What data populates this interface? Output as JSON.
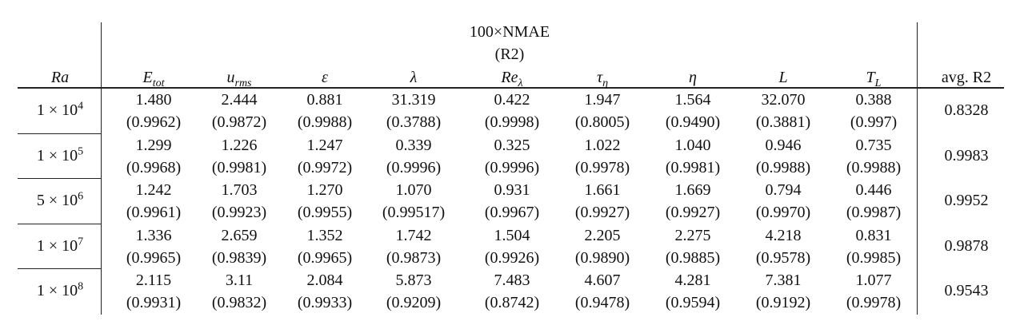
{
  "header": {
    "group_title": "100×NMAE",
    "group_subtitle": "(R2)",
    "row_label": "Ra",
    "columns": [
      {
        "base": "E",
        "sub": "tot"
      },
      {
        "base": "u",
        "sub": "rms"
      },
      {
        "base": "ε"
      },
      {
        "base": "λ"
      },
      {
        "base": "Re",
        "sub": "λ"
      },
      {
        "base": "τ",
        "sub": "η"
      },
      {
        "base": "η"
      },
      {
        "base": "L"
      },
      {
        "base": "T",
        "sub": "L"
      }
    ],
    "avg_label": "avg. R2"
  },
  "rows": [
    {
      "ra": {
        "base": "1 × 10",
        "sup": "4"
      },
      "cells": [
        {
          "value": "1.480",
          "r2": "(0.9962)"
        },
        {
          "value": "2.444",
          "r2": "(0.9872)"
        },
        {
          "value": "0.881",
          "r2": "(0.9988)"
        },
        {
          "value": "31.319",
          "r2": "(0.3788)"
        },
        {
          "value": "0.422",
          "r2": "(0.9998)"
        },
        {
          "value": "1.947",
          "r2": "(0.8005)"
        },
        {
          "value": "1.564",
          "r2": "(0.9490)"
        },
        {
          "value": "32.070",
          "r2": "(0.3881)"
        },
        {
          "value": "0.388",
          "r2": "(0.997)"
        }
      ],
      "avg": "0.8328"
    },
    {
      "ra": {
        "base": "1 × 10",
        "sup": "5"
      },
      "cells": [
        {
          "value": "1.299",
          "r2": "(0.9968)"
        },
        {
          "value": "1.226",
          "r2": "(0.9981)"
        },
        {
          "value": "1.247",
          "r2": "(0.9972)"
        },
        {
          "value": "0.339",
          "r2": "(0.9996)"
        },
        {
          "value": "0.325",
          "r2": "(0.9996)"
        },
        {
          "value": "1.022",
          "r2": "(0.9978)"
        },
        {
          "value": "1.040",
          "r2": "(0.9981)"
        },
        {
          "value": "0.946",
          "r2": "(0.9988)"
        },
        {
          "value": "0.735",
          "r2": "(0.9988)"
        }
      ],
      "avg": "0.9983"
    },
    {
      "ra": {
        "base": "5 × 10",
        "sup": "6"
      },
      "cells": [
        {
          "value": "1.242",
          "r2": "(0.9961)"
        },
        {
          "value": "1.703",
          "r2": "(0.9923)"
        },
        {
          "value": "1.270",
          "r2": "(0.9955)"
        },
        {
          "value": "1.070",
          "r2": "(0.99517)"
        },
        {
          "value": "0.931",
          "r2": "(0.9967)"
        },
        {
          "value": "1.661",
          "r2": "(0.9927)"
        },
        {
          "value": "1.669",
          "r2": "(0.9927)"
        },
        {
          "value": "0.794",
          "r2": "(0.9970)"
        },
        {
          "value": "0.446",
          "r2": "(0.9987)"
        }
      ],
      "avg": "0.9952"
    },
    {
      "ra": {
        "base": "1 × 10",
        "sup": "7"
      },
      "cells": [
        {
          "value": "1.336",
          "r2": "(0.9965)"
        },
        {
          "value": "2.659",
          "r2": "(0.9839)"
        },
        {
          "value": "1.352",
          "r2": "(0.9965)"
        },
        {
          "value": "1.742",
          "r2": "(0.9873)"
        },
        {
          "value": "1.504",
          "r2": "(0.9926)"
        },
        {
          "value": "2.205",
          "r2": "(0.9890)"
        },
        {
          "value": "2.275",
          "r2": "(0.9885)"
        },
        {
          "value": "4.218",
          "r2": "(0.9578)"
        },
        {
          "value": "0.831",
          "r2": "(0.9985)"
        }
      ],
      "avg": "0.9878"
    },
    {
      "ra": {
        "base": "1 × 10",
        "sup": "8"
      },
      "cells": [
        {
          "value": "2.115",
          "r2": "(0.9931)"
        },
        {
          "value": "3.11",
          "r2": "(0.9832)"
        },
        {
          "value": "2.084",
          "r2": "(0.9933)"
        },
        {
          "value": "5.873",
          "r2": "(0.9209)"
        },
        {
          "value": "7.483",
          "r2": "(0.8742)"
        },
        {
          "value": "4.607",
          "r2": "(0.9478)"
        },
        {
          "value": "4.281",
          "r2": "(0.9594)"
        },
        {
          "value": "7.381",
          "r2": "(0.9192)"
        },
        {
          "value": "1.077",
          "r2": "(0.9978)"
        }
      ],
      "avg": "0.9543"
    }
  ]
}
